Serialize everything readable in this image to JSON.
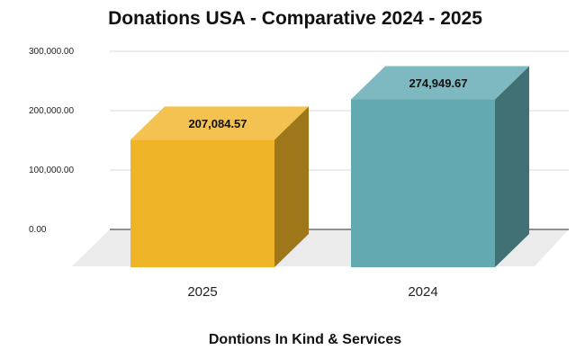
{
  "chart_data": {
    "type": "bar",
    "title": "Donations USA - Comparative 2024 - 2025",
    "xlabel": "Dontions In Kind & Services",
    "ylabel": "",
    "categories": [
      "2025",
      "2024"
    ],
    "values": [
      207084.57,
      274949.67
    ],
    "value_labels": [
      "207,084.57",
      "274,949.67"
    ],
    "ylim": [
      0,
      300000
    ],
    "yticks": [
      0,
      100000,
      200000,
      300000
    ],
    "ytick_labels": [
      "0.00",
      "100,000.00",
      "200,000.00",
      "300,000.00"
    ],
    "colors": [
      "#F0B429",
      "#62A9B2"
    ],
    "grid": true,
    "legend": "none",
    "style": "3d"
  }
}
